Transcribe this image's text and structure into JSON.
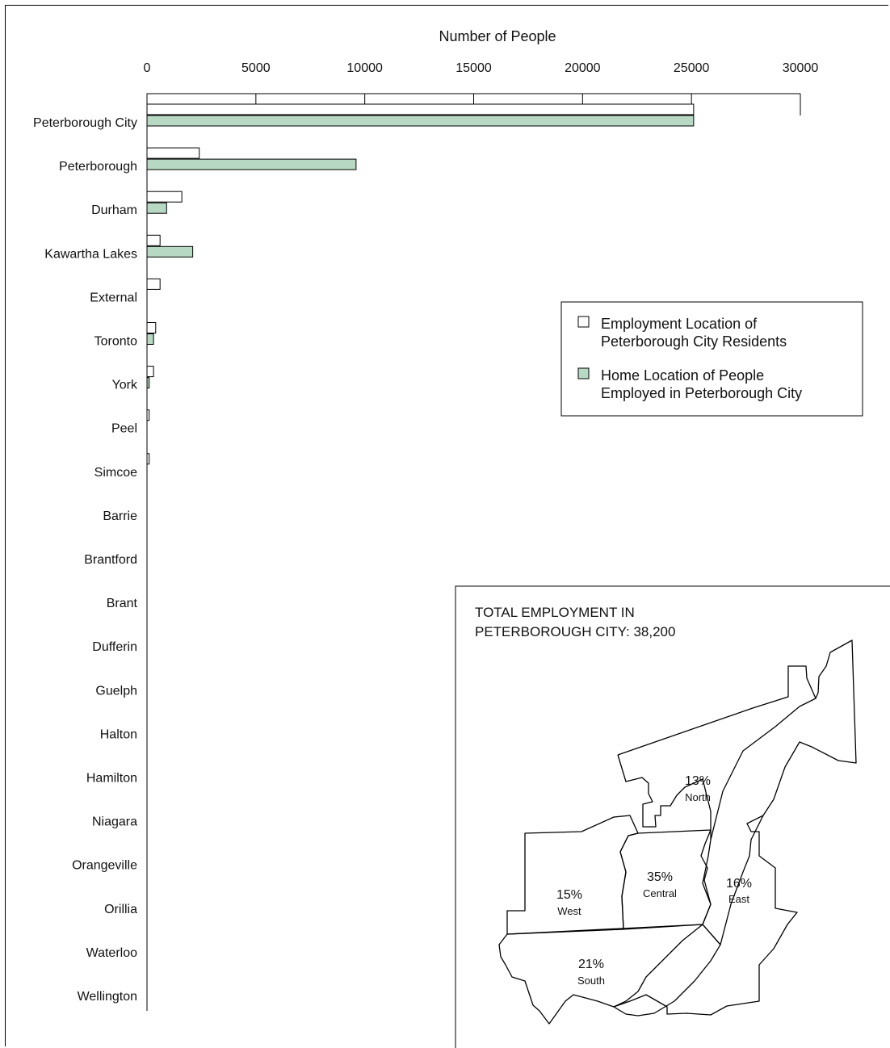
{
  "chart_data": {
    "type": "bar",
    "orientation": "horizontal",
    "xlabel": "Number of People",
    "xlim": [
      0,
      30000
    ],
    "xticks": [
      "0",
      "5000",
      "10000",
      "15000",
      "20000",
      "25000",
      "30000"
    ],
    "categories": [
      "Peterborough City",
      "Peterborough",
      "Durham",
      "Kawartha Lakes",
      "External",
      "Toronto",
      "York",
      "Peel",
      "Simcoe",
      "Barrie",
      "Brantford",
      "Brant",
      "Dufferin",
      "Guelph",
      "Halton",
      "Hamilton",
      "Niagara",
      "Orangeville",
      "Orillia",
      "Waterloo",
      "Wellington"
    ],
    "series": [
      {
        "name": "Employment Location of Peterborough City Residents",
        "color": "#ffffff",
        "values": [
          25100,
          2400,
          1600,
          600,
          600,
          400,
          300,
          100,
          100,
          0,
          0,
          0,
          0,
          0,
          0,
          0,
          0,
          0,
          0,
          0,
          0
        ]
      },
      {
        "name": "Home Location of People Employed in Peterborough City",
        "color": "#b7d9c3",
        "values": [
          25100,
          9600,
          900,
          2100,
          0,
          300,
          100,
          0,
          0,
          0,
          0,
          0,
          0,
          0,
          0,
          0,
          0,
          0,
          0,
          0,
          0
        ]
      }
    ],
    "legend": {
      "placement": "right",
      "lines": [
        [
          "Employment Location of",
          "Peterborough City Residents"
        ],
        [
          "Home Location of People",
          "Employed in Peterborough City"
        ]
      ]
    }
  },
  "inset": {
    "title_lines": [
      "TOTAL EMPLOYMENT IN",
      "PETERBOROUGH CITY: 38,200"
    ],
    "zones": [
      {
        "pct": "13%",
        "name": "North"
      },
      {
        "pct": "35%",
        "name": "Central"
      },
      {
        "pct": "16%",
        "name": "East"
      },
      {
        "pct": "15%",
        "name": "West"
      },
      {
        "pct": "21%",
        "name": "South"
      }
    ]
  }
}
